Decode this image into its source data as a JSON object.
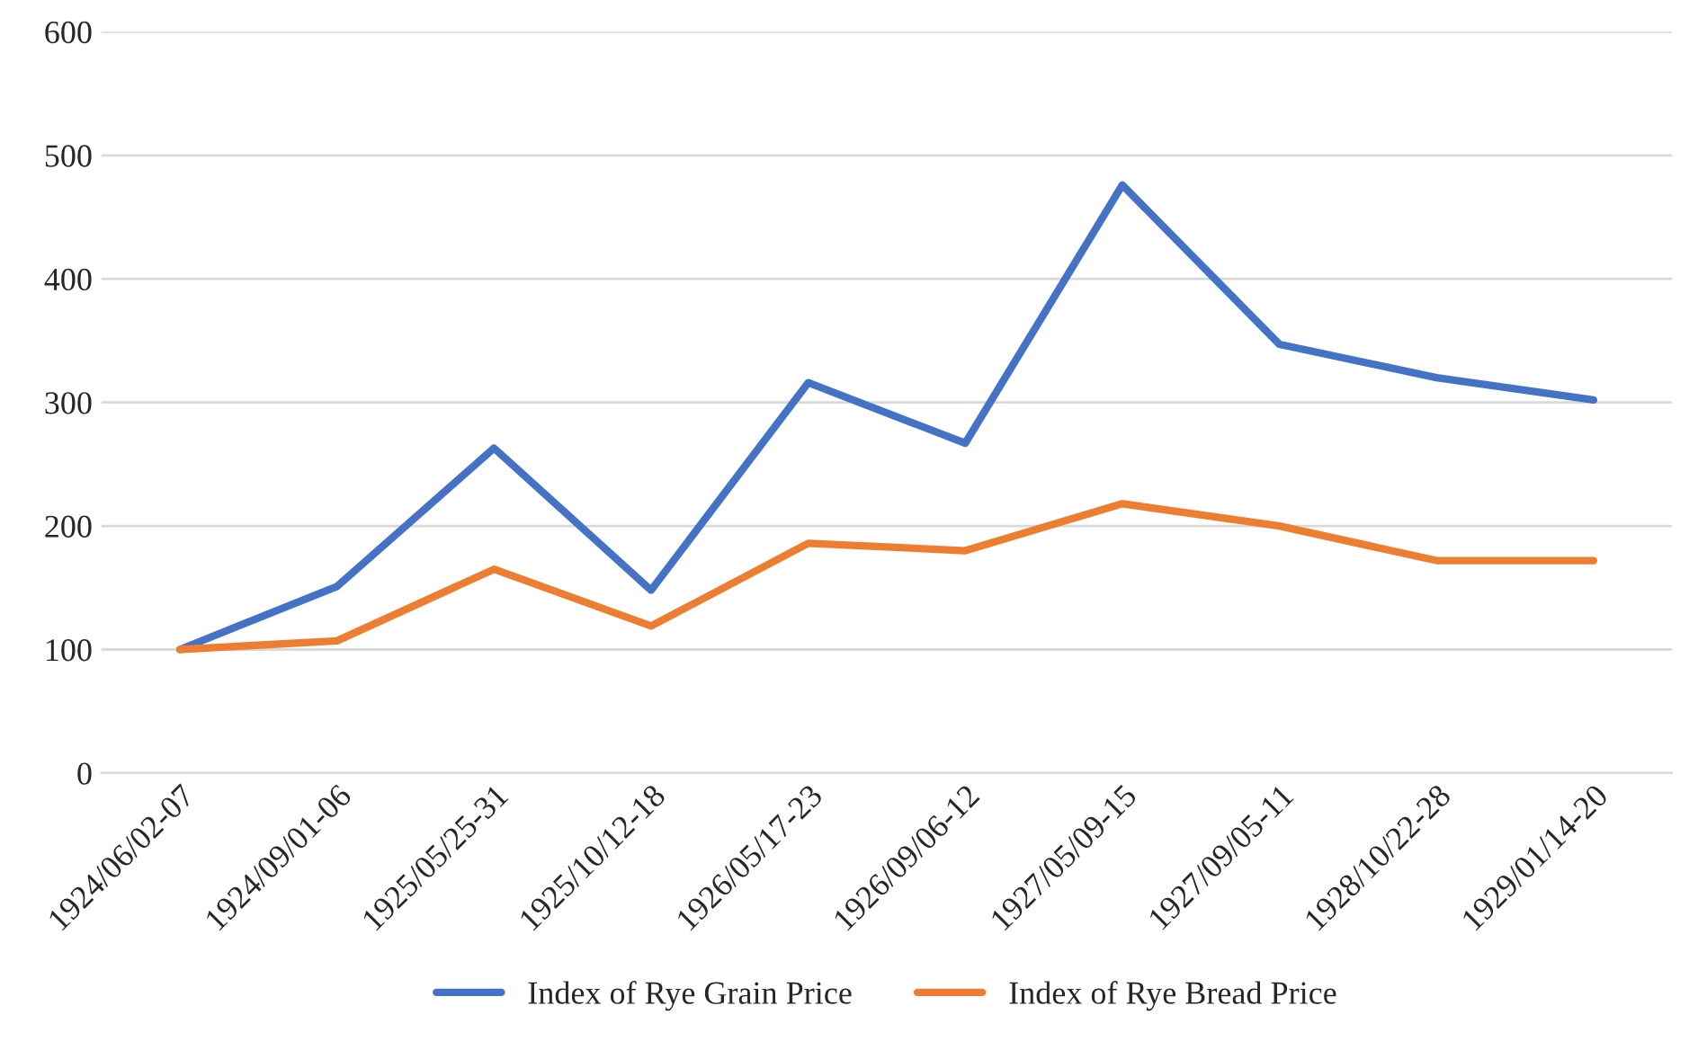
{
  "chart_data": {
    "type": "line",
    "categories": [
      "1924/06/02-07",
      "1924/09/01-06",
      "1925/05/25-31",
      "1925/10/12-18",
      "1926/05/17-23",
      "1926/09/06-12",
      "1927/05/09-15",
      "1927/09/05-11",
      "1928/10/22-28",
      "1929/01/14-20"
    ],
    "series": [
      {
        "name": "Index of Rye Grain Price",
        "color": "#4472c4",
        "values": [
          100,
          151,
          263,
          148,
          316,
          267,
          476,
          347,
          320,
          302
        ]
      },
      {
        "name": "Index of Rye Bread Price",
        "color": "#ed7d31",
        "values": [
          100,
          107,
          165,
          119,
          186,
          180,
          218,
          200,
          172,
          172
        ]
      }
    ],
    "ylim": [
      0,
      600
    ],
    "yticks": [
      0,
      100,
      200,
      300,
      400,
      500,
      600
    ],
    "grid": "y",
    "legend": "bottom",
    "marker": "none",
    "line_style": "solid"
  }
}
